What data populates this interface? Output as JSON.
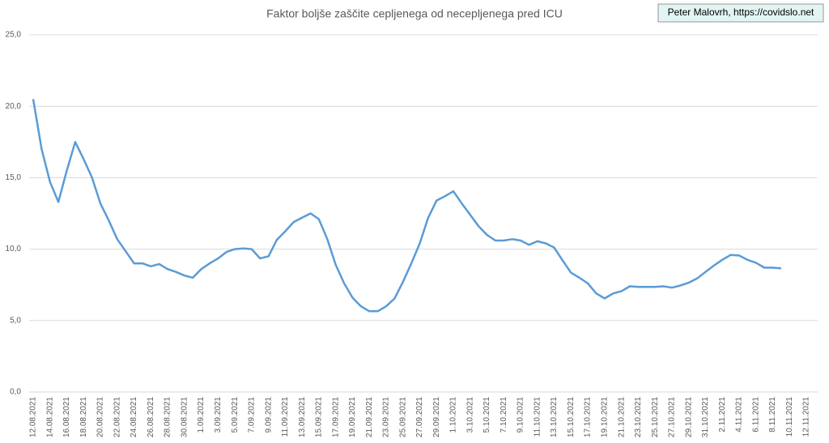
{
  "chart_data": {
    "type": "line",
    "title": "Faktor boljše zaščite cepljenega od necepljenega pred ICU",
    "annotation": "Peter Malovrh, https://covidslo.net",
    "categories": [
      "12.08.2021",
      null,
      "14.08.2021",
      null,
      "16.08.2021",
      null,
      "18.08.2021",
      null,
      "20.08.2021",
      null,
      "22.08.2021",
      null,
      "24.08.2021",
      null,
      "26.08.2021",
      null,
      "28.08.2021",
      null,
      "30.08.2021",
      null,
      "1.09.2021",
      null,
      "3.09.2021",
      null,
      "5.09.2021",
      null,
      "7.09.2021",
      null,
      "9.09.2021",
      null,
      "11.09.2021",
      null,
      "13.09.2021",
      null,
      "15.09.2021",
      null,
      "17.09.2021",
      null,
      "19.09.2021",
      null,
      "21.09.2021",
      null,
      "23.09.2021",
      null,
      "25.09.2021",
      null,
      "27.09.2021",
      null,
      "29.09.2021",
      null,
      "1.10.2021",
      null,
      "3.10.2021",
      null,
      "5.10.2021",
      null,
      "7.10.2021",
      null,
      "9.10.2021",
      null,
      "11.10.2021",
      null,
      "13.10.2021",
      null,
      "15.10.2021",
      null,
      "17.10.2021",
      null,
      "19.10.2021",
      null,
      "21.10.2021",
      null,
      "23.10.2021",
      null,
      "25.10.2021",
      null,
      "27.10.2021",
      null,
      "29.10.2021",
      null,
      "31.10.2021",
      null,
      "2.11.2021",
      null,
      "4.11.2021",
      null,
      "6.11.2021",
      null,
      "8.11.2021",
      null,
      "10.11.2021",
      null,
      "12.11.2021"
    ],
    "values": [
      20.5,
      17.0,
      14.7,
      13.3,
      15.5,
      17.5,
      16.3,
      15.0,
      13.2,
      12.0,
      10.7,
      9.85,
      9.0,
      9.0,
      8.8,
      8.95,
      8.6,
      8.4,
      8.15,
      8.0,
      8.6,
      9.0,
      9.35,
      9.8,
      10.0,
      10.05,
      10.0,
      9.35,
      9.5,
      10.65,
      11.25,
      11.9,
      12.2,
      12.5,
      12.1,
      10.7,
      8.9,
      7.6,
      6.6,
      6.0,
      5.65,
      5.65,
      6.0,
      6.55,
      7.7,
      9.0,
      10.4,
      12.2,
      13.4,
      13.7,
      14.05,
      13.2,
      12.4,
      11.6,
      11.0,
      10.6,
      10.6,
      10.7,
      10.6,
      10.3,
      10.55,
      10.4,
      10.1,
      9.2,
      8.35,
      8.0,
      7.6,
      6.9,
      6.55,
      6.9,
      7.05,
      7.4,
      7.35,
      7.35,
      7.35,
      7.4,
      7.3,
      7.45,
      7.65,
      7.95,
      8.4,
      8.85,
      9.25,
      9.6,
      9.55,
      9.25,
      9.05,
      8.7,
      8.7,
      8.65,
      null,
      null,
      null
    ],
    "color": "#5b9bd5",
    "ylim": [
      0,
      25
    ],
    "yticks": [
      {
        "value": 0,
        "label": "0,0"
      },
      {
        "value": 5,
        "label": "5,0"
      },
      {
        "value": 10,
        "label": "10,0"
      },
      {
        "value": 15,
        "label": "15,0"
      },
      {
        "value": 20,
        "label": "20,0"
      },
      {
        "value": 25,
        "label": "25,0"
      }
    ],
    "grid": true
  }
}
